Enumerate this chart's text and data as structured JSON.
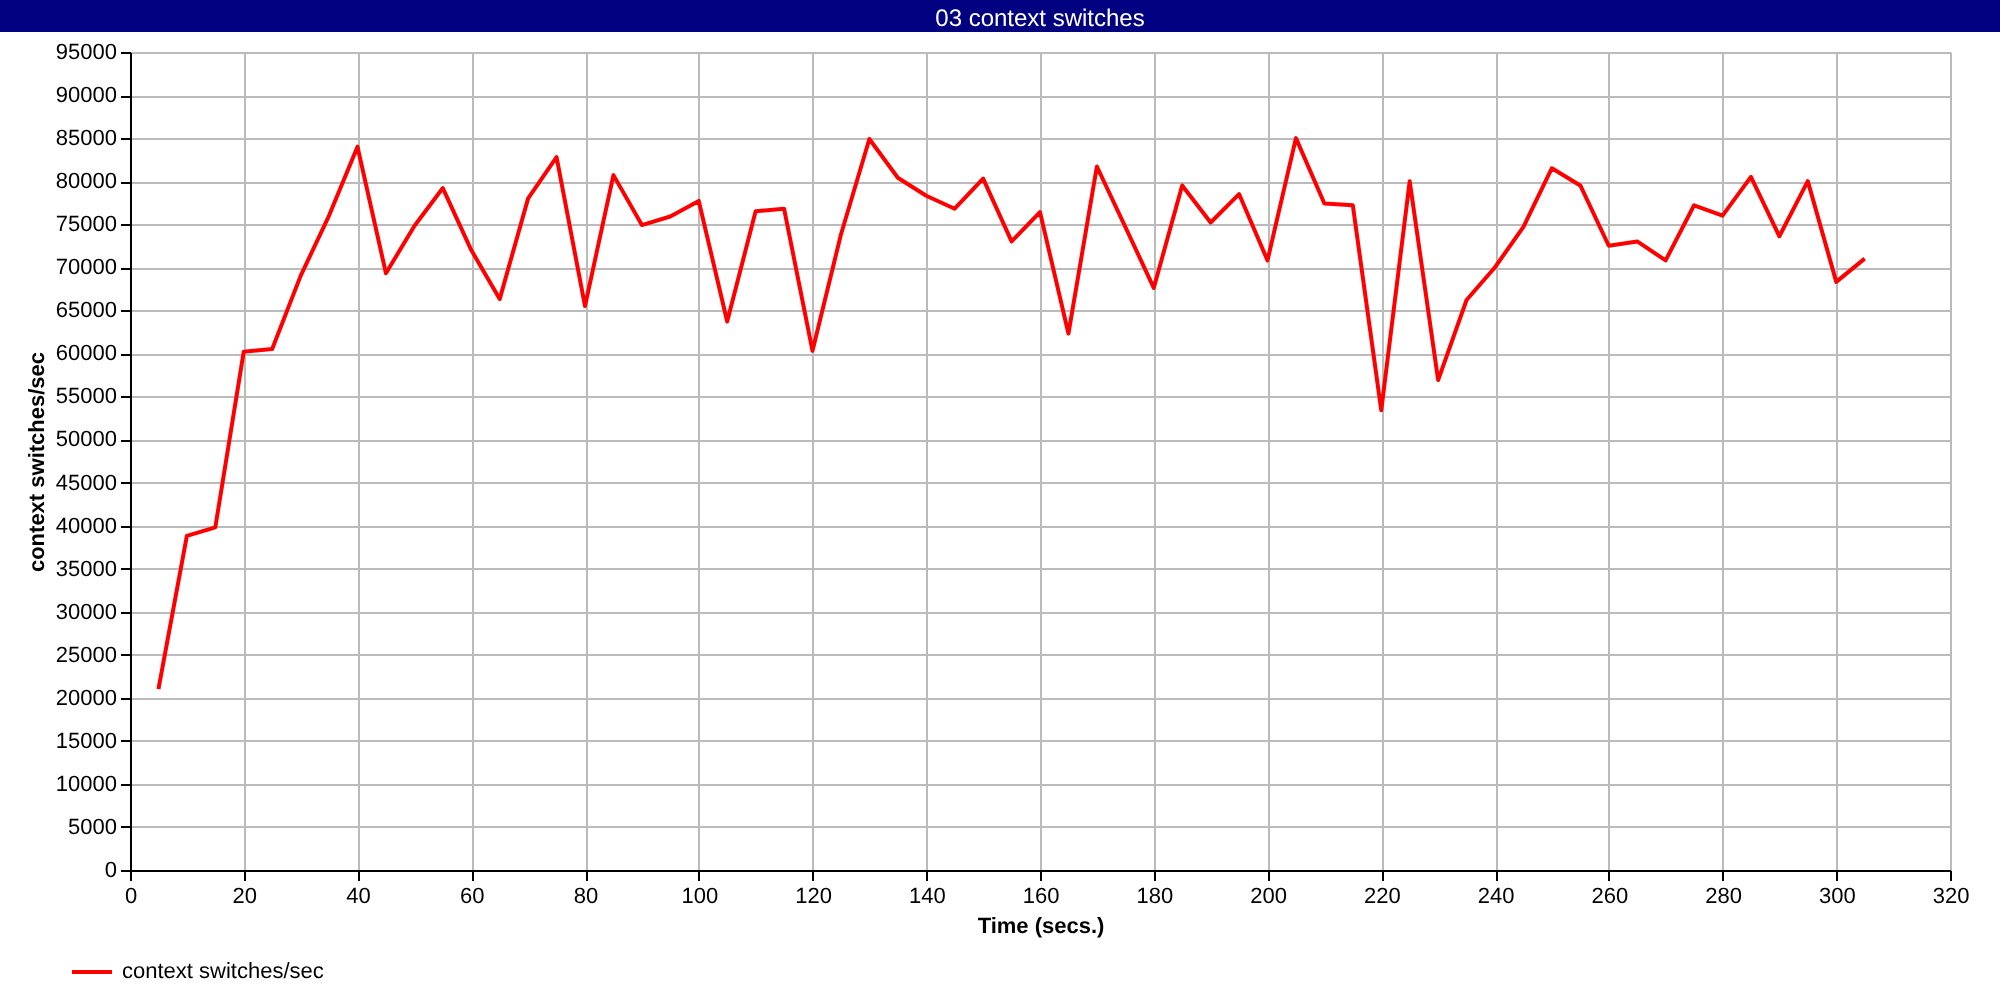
{
  "chart_data": {
    "type": "line",
    "title": "03 context switches",
    "xlabel": "Time (secs.)",
    "ylabel": "context switches/sec",
    "x": [
      5,
      10,
      15,
      20,
      25,
      30,
      35,
      40,
      45,
      50,
      55,
      60,
      65,
      70,
      75,
      80,
      85,
      90,
      95,
      100,
      105,
      110,
      115,
      120,
      125,
      130,
      135,
      140,
      145,
      150,
      155,
      160,
      165,
      170,
      175,
      180,
      185,
      190,
      195,
      200,
      205,
      210,
      215,
      220,
      225,
      230,
      235,
      240,
      245,
      250,
      255,
      260,
      265,
      270,
      275,
      280,
      285,
      290,
      295,
      300,
      305
    ],
    "series": [
      {
        "name": "context switches/sec",
        "color": "#ff0000",
        "values": [
          21000,
          38800,
          39800,
          60200,
          60500,
          69000,
          76000,
          84000,
          69300,
          74800,
          79200,
          72000,
          66300,
          78000,
          82800,
          65500,
          80700,
          74900,
          75900,
          77700,
          63700,
          76500,
          76800,
          60300,
          73800,
          84900,
          80400,
          78300,
          76800,
          80300,
          73000,
          76400,
          62300,
          81700,
          74700,
          67600,
          79500,
          75200,
          78500,
          70800,
          85000,
          77400,
          77200,
          53400,
          80000,
          56900,
          66200,
          70000,
          74700,
          81500,
          79500,
          72500,
          73000,
          70800,
          77200,
          76000,
          80500,
          73600,
          80000,
          68300,
          71000
        ]
      }
    ],
    "xlim": [
      0,
      320
    ],
    "xticks": [
      0,
      20,
      40,
      60,
      80,
      100,
      120,
      140,
      160,
      180,
      200,
      220,
      240,
      260,
      280,
      300,
      320
    ],
    "ylim": [
      0,
      95000
    ],
    "yticks": [
      0,
      5000,
      10000,
      15000,
      20000,
      25000,
      30000,
      35000,
      40000,
      45000,
      50000,
      55000,
      60000,
      65000,
      70000,
      75000,
      80000,
      85000,
      90000,
      95000
    ],
    "grid": true,
    "legend": "bottom left",
    "marker": "none",
    "line_style": "solid"
  }
}
